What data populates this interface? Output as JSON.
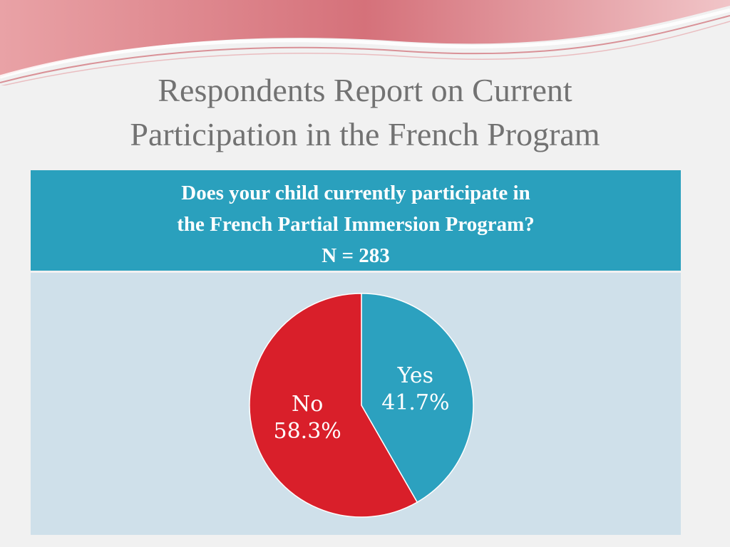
{
  "slide": {
    "title_lines": [
      "Respondents Report on Current",
      "Participation in the French Program"
    ]
  },
  "table": {
    "header_lines": [
      "Does your child currently participate in",
      "the French Partial Immersion Program?",
      "N = 283"
    ]
  },
  "colors": {
    "header_bg": "#2aa0bd",
    "body_bg": "#cfe0ea",
    "title_text": "#727272",
    "swoosh": "#d97a80"
  },
  "chart_data": {
    "type": "pie",
    "title": "",
    "slices": [
      {
        "label": "Yes",
        "value": 41.7,
        "value_label": "41.7%",
        "color": "#2ca1bf"
      },
      {
        "label": "No",
        "value": 58.3,
        "value_label": "58.3%",
        "color": "#d91f2a"
      }
    ],
    "start_angle_deg": 0,
    "direction": "clockwise",
    "legend": "none"
  }
}
